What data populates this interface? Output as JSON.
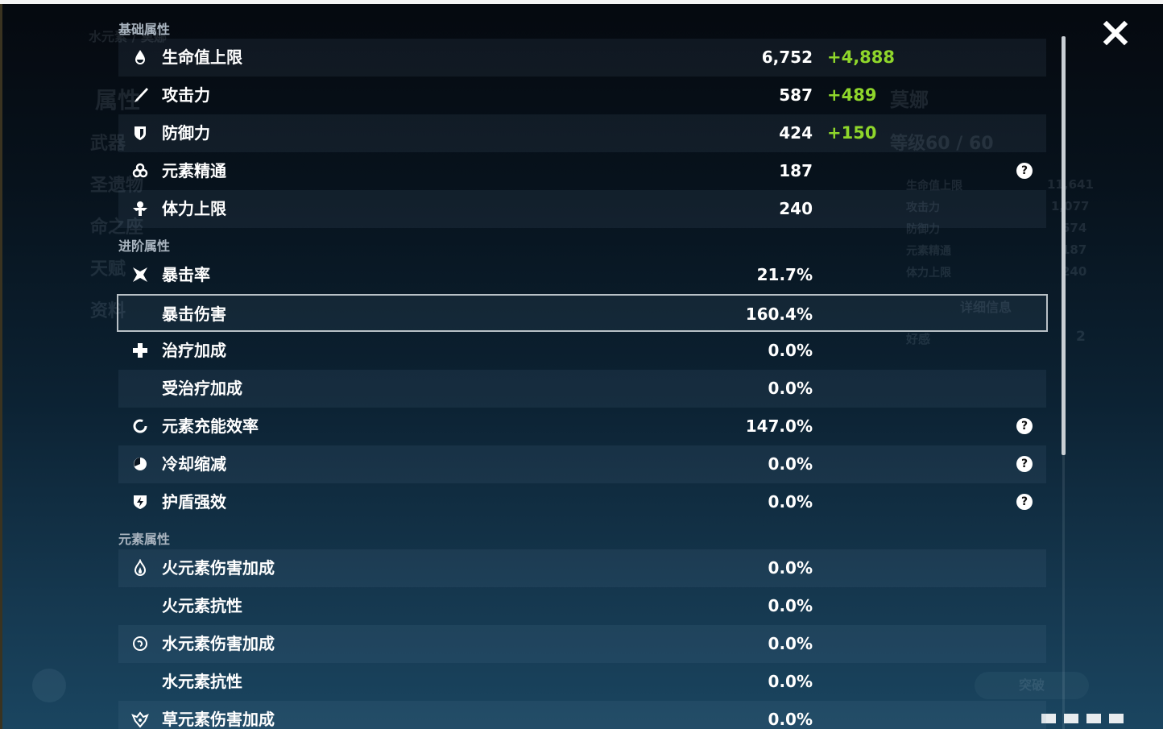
{
  "sections": {
    "base": {
      "title": "基础属性",
      "rows": [
        {
          "label": "生命值上限",
          "value": "6,752",
          "bonus": "+4,888",
          "icon": "hp-drop-icon"
        },
        {
          "label": "攻击力",
          "value": "587",
          "bonus": "+489",
          "icon": "sword-icon"
        },
        {
          "label": "防御力",
          "value": "424",
          "bonus": "+150",
          "icon": "shield-icon"
        },
        {
          "label": "元素精通",
          "value": "187",
          "icon": "elemental-mastery-icon",
          "help": "?"
        },
        {
          "label": "体力上限",
          "value": "240",
          "icon": "stamina-icon"
        }
      ]
    },
    "advanced": {
      "title": "进阶属性",
      "rows": [
        {
          "label": "暴击率",
          "value": "21.7%",
          "icon": "crit-rate-icon"
        },
        {
          "label": "暴击伤害",
          "value": "160.4%",
          "selected": true
        },
        {
          "label": "治疗加成",
          "value": "0.0%",
          "icon": "healing-cross-icon"
        },
        {
          "label": "受治疗加成",
          "value": "0.0%"
        },
        {
          "label": "元素充能效率",
          "value": "147.0%",
          "icon": "energy-recharge-icon",
          "help": "?"
        },
        {
          "label": "冷却缩减",
          "value": "0.0%",
          "icon": "cooldown-icon",
          "help": "?"
        },
        {
          "label": "护盾强效",
          "value": "0.0%",
          "icon": "shield-strength-icon",
          "help": "?"
        }
      ]
    },
    "elemental": {
      "title": "元素属性",
      "rows": [
        {
          "label": "火元素伤害加成",
          "value": "0.0%",
          "icon": "pyro-icon"
        },
        {
          "label": "火元素抗性",
          "value": "0.0%"
        },
        {
          "label": "水元素伤害加成",
          "value": "0.0%",
          "icon": "hydro-icon"
        },
        {
          "label": "水元素抗性",
          "value": "0.0%"
        },
        {
          "label": "草元素伤害加成",
          "value": "0.0%",
          "icon": "dendro-icon"
        }
      ]
    }
  },
  "background": {
    "element_name": "水元素 / 莫娜",
    "nav": [
      "属性",
      "武器",
      "圣遗物",
      "命之座",
      "天赋",
      "资料"
    ],
    "character_name": "莫娜",
    "level": "等级60 / 60",
    "stats": [
      [
        "生命值上限",
        "11,641"
      ],
      [
        "攻击力",
        "1,077"
      ],
      [
        "防御力",
        "574"
      ],
      [
        "元素精通",
        "187"
      ],
      [
        "体力上限",
        "240"
      ]
    ],
    "details_button": "详细信息",
    "friendship_label": "好感",
    "friendship_value": "2",
    "ascend_button": "突破"
  },
  "colors": {
    "bonus": "#8fd62b",
    "selection_border": "#b8c0c6"
  }
}
